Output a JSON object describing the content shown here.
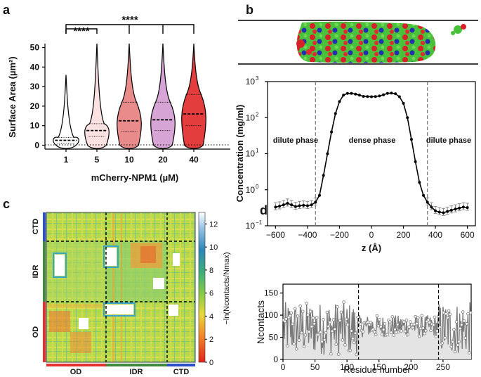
{
  "panels": {
    "a": {
      "letter": "a",
      "ylabel": "Surface Area (µm²)",
      "xlabel": "mCherry-NPM1 (µM)",
      "sig_short": "****",
      "sig_long": "****"
    },
    "b": {
      "letter": "b",
      "ylabel": "Concentration (mg/ml)",
      "xlabel": "z (Å)",
      "phase_left": "dilute phase",
      "phase_mid": "dense phase",
      "phase_right": "dilute phase"
    },
    "c": {
      "letter": "c",
      "cbar_label": "−ln(Ncontacts/Nmax)",
      "domains_x": [
        "OD",
        "IDR",
        "CTD"
      ],
      "domains_y": [
        "CTD",
        "IDR",
        "OD"
      ]
    },
    "d": {
      "letter": "d",
      "ylabel": "Ncontacts",
      "xlabel": "Residue number"
    }
  },
  "colors": {
    "OD": "#e53030",
    "IDR": "#3f8a3f",
    "CTD": "#2a4fc8"
  },
  "chart_data": [
    {
      "panel": "a",
      "type": "violin",
      "xlabel": "mCherry-NPM1 (µM)",
      "ylabel": "Surface Area (µm²)",
      "ylim": [
        -2,
        52
      ],
      "yticks": [
        0,
        10,
        20,
        30,
        40,
        50
      ],
      "categories": [
        "1",
        "5",
        "10",
        "20",
        "40"
      ],
      "medians": [
        2.5,
        7.5,
        12.5,
        13.0,
        16.0
      ],
      "q1": [
        1.0,
        4.5,
        7.0,
        7.5,
        10.0
      ],
      "q3": [
        4.0,
        11.0,
        22.0,
        22.0,
        26.0
      ],
      "maxima": [
        36,
        55,
        55,
        55,
        55
      ],
      "fills": [
        "#ffffff",
        "#fbe1e1",
        "#e98b8b",
        "#d6a5d6",
        "#e33d3d"
      ],
      "significance": [
        {
          "from": "1",
          "to": "5",
          "label": "****"
        },
        {
          "from": "1",
          "to": [
            "10",
            "20",
            "40"
          ],
          "label": "****"
        }
      ]
    },
    {
      "panel": "b",
      "type": "line",
      "xlabel": "z (Å)",
      "ylabel": "Concentration (mg/ml)",
      "yscale": "log",
      "xlim": [
        -650,
        650
      ],
      "ylim": [
        0.1,
        1000
      ],
      "xticks": [
        -600,
        -400,
        -200,
        0,
        200,
        400,
        600
      ],
      "yticks": [
        "10^-1",
        "10^0",
        "10^1",
        "10^2",
        "10^3"
      ],
      "phase_boundaries": [
        -350,
        350
      ],
      "x": [
        -600,
        -575,
        -550,
        -525,
        -500,
        -475,
        -450,
        -425,
        -400,
        -375,
        -350,
        -325,
        -300,
        -275,
        -250,
        -225,
        -200,
        -175,
        -150,
        -125,
        -100,
        -75,
        -50,
        -25,
        0,
        25,
        50,
        75,
        100,
        125,
        150,
        175,
        200,
        225,
        250,
        275,
        300,
        325,
        350,
        375,
        400,
        425,
        450,
        475,
        500,
        525,
        550,
        575,
        600
      ],
      "y": [
        0.33,
        0.35,
        0.38,
        0.42,
        0.38,
        0.34,
        0.36,
        0.37,
        0.36,
        0.38,
        0.45,
        0.7,
        2.5,
        10,
        40,
        130,
        280,
        420,
        470,
        470,
        450,
        420,
        390,
        385,
        380,
        385,
        400,
        430,
        470,
        480,
        460,
        380,
        250,
        100,
        25,
        6,
        1.6,
        0.7,
        0.45,
        0.33,
        0.26,
        0.24,
        0.23,
        0.25,
        0.27,
        0.29,
        0.31,
        0.33,
        0.32
      ]
    },
    {
      "panel": "c",
      "type": "heatmap",
      "x_range": [
        1,
        294
      ],
      "y_range": [
        1,
        294
      ],
      "domain_boundaries": [
        118,
        243
      ],
      "colorbar_range": [
        0,
        13
      ],
      "colorbar_ticks": [
        0,
        2,
        4,
        6,
        8,
        10,
        12
      ],
      "label": "−ln(Ncontacts/Nmax)"
    },
    {
      "panel": "d",
      "type": "line",
      "xlabel": "Residue number",
      "ylabel": "Ncontacts",
      "xlim": [
        0,
        294
      ],
      "ylim": [
        0,
        170
      ],
      "xticks": [
        0,
        50,
        100,
        150,
        200,
        250
      ],
      "yticks": [
        0,
        50,
        100,
        150
      ],
      "domain_boundaries": [
        118,
        243
      ]
    }
  ]
}
